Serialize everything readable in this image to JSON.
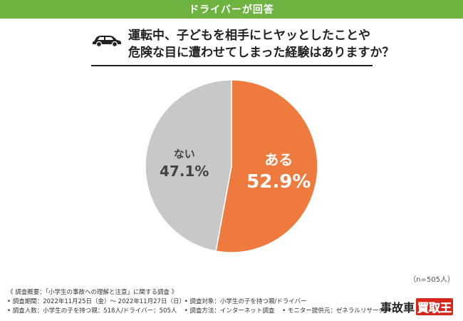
{
  "header": {
    "title": "ドライバーが回答"
  },
  "question": {
    "line1": "運転中、子どもを相手にヒヤッとしたことや",
    "line2": "危険な目に遭わせてしまった経験はありますか？"
  },
  "chart_data": {
    "type": "pie",
    "title": "",
    "categories": [
      "ある",
      "ない"
    ],
    "values": [
      52.9,
      47.1
    ],
    "labels": [
      "52.9%",
      "47.1%"
    ],
    "colors": [
      "#ee7a3d",
      "#c8c8c8"
    ]
  },
  "note": {
    "n": "（n=505人）"
  },
  "footer": {
    "summary": "《 調査概要：「小学生の事故への理解と注意」に関する調査 》",
    "period": "• 調査期間：2022年11月25日（金）～ 2022年11月27日（日）",
    "target": "• 調査対象：小学生の子を持つ親/ドライバー",
    "count": "• 調査人数：小学生の子を持つ親：518人/ドライバー：505人",
    "method": "• 調査方法：インターネット調査",
    "provider": "• モニター提供元：ゼネラルリサーチ"
  },
  "logo": {
    "text_main": "事故車",
    "text_highlight": "買取王"
  }
}
